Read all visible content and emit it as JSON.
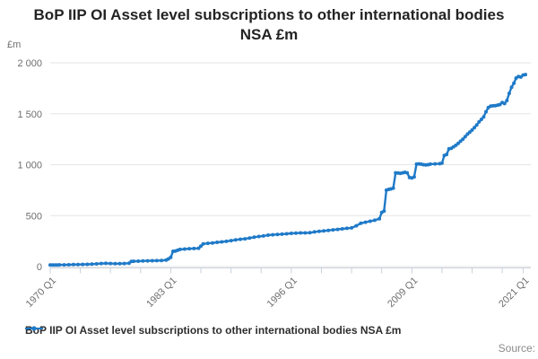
{
  "title": "BoP IIP OI Asset level subscriptions to other international bodies NSA £m",
  "source_label": "Source:",
  "legend": {
    "label": "BoP IIP OI Asset level subscriptions to other international bodies NSA £m"
  },
  "colors": {
    "line": "#1f7ac8",
    "grid": "#e6e6e6",
    "axis": "#c9ced6",
    "tick": "#c6d1dc",
    "axis_text": "#6e6e6e",
    "title_text": "#232323"
  },
  "chart_data": {
    "type": "line",
    "title": "BoP IIP OI Asset level subscriptions to other international bodies NSA £m",
    "ylabel": "£m",
    "xlabel": "",
    "grid": "horizontal only",
    "legend_position": "bottom-left",
    "ylim": [
      0,
      2000
    ],
    "xlim": [
      1970.0,
      2021.25
    ],
    "y_ticks": [
      {
        "value": 0,
        "label": "0"
      },
      {
        "value": 500,
        "label": "500"
      },
      {
        "value": 1000,
        "label": "1 000"
      },
      {
        "value": 1500,
        "label": "1 500"
      },
      {
        "value": 2000,
        "label": "2 000"
      }
    ],
    "x_tick_labels": [
      {
        "t": 1970.0,
        "label": "1970 Q1"
      },
      {
        "t": 1983.0,
        "label": "1983 Q1"
      },
      {
        "t": 1996.0,
        "label": "1996 Q1"
      },
      {
        "t": 2009.0,
        "label": "2009 Q1"
      },
      {
        "t": 2021.0,
        "label": "2021 Q1"
      }
    ],
    "x_minor_ticks": [
      1970.0,
      1973.25,
      1976.5,
      1979.75,
      1983.0,
      1986.25,
      1989.5,
      1992.75,
      1996.0,
      1999.25,
      2002.5,
      2005.75,
      2009.0,
      2012.25,
      2015.5,
      2018.75,
      2021.0
    ],
    "series": [
      {
        "name": "BoP IIP OI Asset level subscriptions to other international bodies NSA £m",
        "color": "#1f7ac8",
        "points": [
          [
            1970.0,
            15
          ],
          [
            1970.25,
            15
          ],
          [
            1970.5,
            16
          ],
          [
            1970.75,
            16
          ],
          [
            1971.0,
            17
          ],
          [
            1971.5,
            17
          ],
          [
            1972.0,
            18
          ],
          [
            1972.5,
            19
          ],
          [
            1973.0,
            20
          ],
          [
            1973.5,
            21
          ],
          [
            1974.0,
            22
          ],
          [
            1974.5,
            24
          ],
          [
            1975.0,
            26
          ],
          [
            1975.5,
            30
          ],
          [
            1976.0,
            32
          ],
          [
            1976.5,
            30
          ],
          [
            1977.0,
            28
          ],
          [
            1977.5,
            29
          ],
          [
            1978.0,
            30
          ],
          [
            1978.5,
            33
          ],
          [
            1978.75,
            50
          ],
          [
            1979.0,
            52
          ],
          [
            1979.5,
            53
          ],
          [
            1980.0,
            55
          ],
          [
            1980.5,
            56
          ],
          [
            1981.0,
            57
          ],
          [
            1981.5,
            58
          ],
          [
            1982.0,
            60
          ],
          [
            1982.5,
            63
          ],
          [
            1982.75,
            75
          ],
          [
            1983.0,
            90
          ],
          [
            1983.25,
            150
          ],
          [
            1983.5,
            152
          ],
          [
            1983.75,
            160
          ],
          [
            1984.0,
            168
          ],
          [
            1984.5,
            172
          ],
          [
            1985.0,
            175
          ],
          [
            1985.5,
            177
          ],
          [
            1986.0,
            180
          ],
          [
            1986.25,
            200
          ],
          [
            1986.5,
            222
          ],
          [
            1987.0,
            228
          ],
          [
            1987.5,
            232
          ],
          [
            1988.0,
            238
          ],
          [
            1988.5,
            242
          ],
          [
            1989.0,
            248
          ],
          [
            1989.5,
            255
          ],
          [
            1990.0,
            262
          ],
          [
            1990.5,
            268
          ],
          [
            1991.0,
            272
          ],
          [
            1991.5,
            280
          ],
          [
            1992.0,
            288
          ],
          [
            1992.5,
            295
          ],
          [
            1993.0,
            300
          ],
          [
            1993.5,
            308
          ],
          [
            1994.0,
            312
          ],
          [
            1994.5,
            315
          ],
          [
            1995.0,
            318
          ],
          [
            1995.5,
            322
          ],
          [
            1996.0,
            326
          ],
          [
            1996.5,
            328
          ],
          [
            1997.0,
            330
          ],
          [
            1997.5,
            330
          ],
          [
            1998.0,
            332
          ],
          [
            1998.5,
            340
          ],
          [
            1999.0,
            345
          ],
          [
            1999.5,
            350
          ],
          [
            2000.0,
            355
          ],
          [
            2000.5,
            360
          ],
          [
            2001.0,
            365
          ],
          [
            2001.5,
            370
          ],
          [
            2002.0,
            375
          ],
          [
            2002.5,
            380
          ],
          [
            2003.0,
            400
          ],
          [
            2003.5,
            425
          ],
          [
            2004.0,
            435
          ],
          [
            2004.5,
            445
          ],
          [
            2005.0,
            455
          ],
          [
            2005.5,
            470
          ],
          [
            2005.75,
            530
          ],
          [
            2006.0,
            545
          ],
          [
            2006.25,
            750
          ],
          [
            2006.5,
            758
          ],
          [
            2006.75,
            762
          ],
          [
            2007.0,
            770
          ],
          [
            2007.25,
            920
          ],
          [
            2007.5,
            918
          ],
          [
            2007.75,
            915
          ],
          [
            2008.0,
            920
          ],
          [
            2008.25,
            925
          ],
          [
            2008.5,
            920
          ],
          [
            2008.75,
            875
          ],
          [
            2009.0,
            870
          ],
          [
            2009.25,
            880
          ],
          [
            2009.5,
            1005
          ],
          [
            2009.75,
            1008
          ],
          [
            2010.0,
            1005
          ],
          [
            2010.25,
            1000
          ],
          [
            2010.5,
            998
          ],
          [
            2010.75,
            1000
          ],
          [
            2011.0,
            1005
          ],
          [
            2011.5,
            1008
          ],
          [
            2012.0,
            1010
          ],
          [
            2012.25,
            1015
          ],
          [
            2012.5,
            1090
          ],
          [
            2012.75,
            1100
          ],
          [
            2013.0,
            1155
          ],
          [
            2013.25,
            1160
          ],
          [
            2013.5,
            1175
          ],
          [
            2013.75,
            1190
          ],
          [
            2014.0,
            1210
          ],
          [
            2014.25,
            1230
          ],
          [
            2014.5,
            1250
          ],
          [
            2014.75,
            1275
          ],
          [
            2015.0,
            1300
          ],
          [
            2015.25,
            1320
          ],
          [
            2015.5,
            1340
          ],
          [
            2015.75,
            1365
          ],
          [
            2016.0,
            1390
          ],
          [
            2016.25,
            1420
          ],
          [
            2016.5,
            1445
          ],
          [
            2016.75,
            1470
          ],
          [
            2017.0,
            1520
          ],
          [
            2017.25,
            1560
          ],
          [
            2017.5,
            1575
          ],
          [
            2017.75,
            1578
          ],
          [
            2018.0,
            1580
          ],
          [
            2018.25,
            1585
          ],
          [
            2018.5,
            1590
          ],
          [
            2018.75,
            1610
          ],
          [
            2019.0,
            1600
          ],
          [
            2019.25,
            1630
          ],
          [
            2019.5,
            1700
          ],
          [
            2019.75,
            1760
          ],
          [
            2020.0,
            1800
          ],
          [
            2020.25,
            1850
          ],
          [
            2020.5,
            1865
          ],
          [
            2020.75,
            1860
          ],
          [
            2021.0,
            1880
          ],
          [
            2021.25,
            1885
          ]
        ]
      }
    ]
  }
}
